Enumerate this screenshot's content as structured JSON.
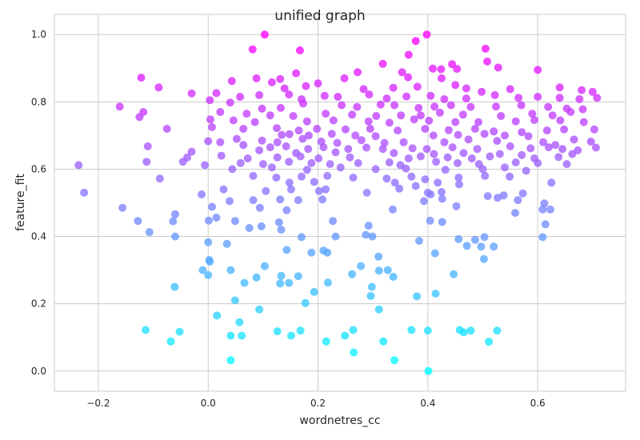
{
  "chart_data": {
    "type": "scatter",
    "title": "unified graph",
    "xlabel": "wordnetres_cc",
    "ylabel": "feature_fit",
    "xlim": [
      -0.28,
      0.76
    ],
    "ylim": [
      -0.06,
      1.06
    ],
    "xticks": [
      -0.2,
      0.0,
      0.2,
      0.4,
      0.6
    ],
    "xtick_labels": [
      "−0.2",
      "0.0",
      "0.2",
      "0.4",
      "0.6"
    ],
    "yticks": [
      0.0,
      0.2,
      0.4,
      0.6,
      0.8,
      1.0
    ],
    "ytick_labels": [
      "0.0",
      "0.2",
      "0.4",
      "0.6",
      "0.8",
      "1.0"
    ],
    "grid": true,
    "color_map": {
      "low": "#00ffff",
      "high": "#ff00ff",
      "encodes": "y"
    },
    "points": [
      [
        0.103,
        1.0
      ],
      [
        0.398,
        1.0
      ],
      [
        0.378,
        0.981
      ],
      [
        0.081,
        0.956
      ],
      [
        0.167,
        0.953
      ],
      [
        0.505,
        0.958
      ],
      [
        0.365,
        0.94
      ],
      [
        0.508,
        0.92
      ],
      [
        0.318,
        0.913
      ],
      [
        0.444,
        0.912
      ],
      [
        0.528,
        0.902
      ],
      [
        0.409,
        0.899
      ],
      [
        0.6,
        0.895
      ],
      [
        0.16,
        0.885
      ],
      [
        0.272,
        0.888
      ],
      [
        0.353,
        0.888
      ],
      [
        0.424,
        0.897
      ],
      [
        0.453,
        0.898
      ],
      [
        -0.122,
        0.872
      ],
      [
        0.088,
        0.87
      ],
      [
        0.131,
        0.868
      ],
      [
        0.248,
        0.87
      ],
      [
        0.364,
        0.873
      ],
      [
        0.425,
        0.87
      ],
      [
        -0.09,
        0.843
      ],
      [
        0.043,
        0.862
      ],
      [
        0.116,
        0.858
      ],
      [
        0.139,
        0.84
      ],
      [
        0.178,
        0.847
      ],
      [
        0.2,
        0.855
      ],
      [
        0.283,
        0.838
      ],
      [
        0.337,
        0.842
      ],
      [
        0.381,
        0.845
      ],
      [
        0.45,
        0.85
      ],
      [
        0.47,
        0.84
      ],
      [
        0.498,
        0.83
      ],
      [
        0.55,
        0.838
      ],
      [
        0.64,
        0.843
      ],
      [
        0.68,
        0.835
      ],
      [
        0.7,
        0.83
      ],
      [
        -0.03,
        0.825
      ],
      [
        0.015,
        0.826
      ],
      [
        0.058,
        0.815
      ],
      [
        0.093,
        0.82
      ],
      [
        0.147,
        0.822
      ],
      [
        0.17,
        0.808
      ],
      [
        0.212,
        0.818
      ],
      [
        0.236,
        0.815
      ],
      [
        0.293,
        0.822
      ],
      [
        0.325,
        0.81
      ],
      [
        0.361,
        0.816
      ],
      [
        0.405,
        0.818
      ],
      [
        0.43,
        0.808
      ],
      [
        0.47,
        0.81
      ],
      [
        0.522,
        0.82
      ],
      [
        0.565,
        0.812
      ],
      [
        0.6,
        0.815
      ],
      [
        0.64,
        0.812
      ],
      [
        0.676,
        0.808
      ],
      [
        0.708,
        0.812
      ],
      [
        -0.161,
        0.786
      ],
      [
        0.003,
        0.805
      ],
      [
        0.04,
        0.798
      ],
      [
        0.098,
        0.78
      ],
      [
        0.132,
        0.782
      ],
      [
        0.173,
        0.795
      ],
      [
        0.243,
        0.79
      ],
      [
        0.271,
        0.785
      ],
      [
        0.314,
        0.792
      ],
      [
        0.339,
        0.79
      ],
      [
        0.383,
        0.782
      ],
      [
        0.412,
        0.786
      ],
      [
        0.442,
        0.79
      ],
      [
        0.478,
        0.785
      ],
      [
        0.524,
        0.786
      ],
      [
        0.57,
        0.79
      ],
      [
        0.619,
        0.785
      ],
      [
        0.653,
        0.78
      ],
      [
        0.682,
        0.778
      ],
      [
        -0.118,
        0.77
      ],
      [
        0.022,
        0.77
      ],
      [
        0.07,
        0.765
      ],
      [
        0.113,
        0.76
      ],
      [
        0.155,
        0.758
      ],
      [
        0.214,
        0.765
      ],
      [
        0.262,
        0.762
      ],
      [
        0.306,
        0.758
      ],
      [
        0.351,
        0.76
      ],
      [
        0.387,
        0.76
      ],
      [
        0.422,
        0.768
      ],
      [
        0.464,
        0.762
      ],
      [
        0.533,
        0.758
      ],
      [
        0.59,
        0.765
      ],
      [
        0.627,
        0.76
      ],
      [
        0.66,
        0.77
      ],
      [
        -0.125,
        0.755
      ],
      [
        0.004,
        0.748
      ],
      [
        0.046,
        0.745
      ],
      [
        0.085,
        0.74
      ],
      [
        0.18,
        0.742
      ],
      [
        0.228,
        0.745
      ],
      [
        0.292,
        0.742
      ],
      [
        0.33,
        0.738
      ],
      [
        0.375,
        0.748
      ],
      [
        0.402,
        0.744
      ],
      [
        0.45,
        0.74
      ],
      [
        0.492,
        0.74
      ],
      [
        0.56,
        0.742
      ],
      [
        0.594,
        0.746
      ],
      [
        0.641,
        0.745
      ],
      [
        0.684,
        0.74
      ],
      [
        -0.075,
        0.72
      ],
      [
        0.007,
        0.725
      ],
      [
        0.064,
        0.72
      ],
      [
        0.125,
        0.722
      ],
      [
        0.165,
        0.715
      ],
      [
        0.198,
        0.72
      ],
      [
        0.25,
        0.718
      ],
      [
        0.295,
        0.72
      ],
      [
        0.345,
        0.715
      ],
      [
        0.395,
        0.72
      ],
      [
        0.438,
        0.716
      ],
      [
        0.486,
        0.72
      ],
      [
        0.52,
        0.712
      ],
      [
        0.571,
        0.71
      ],
      [
        0.617,
        0.715
      ],
      [
        0.648,
        0.718
      ],
      [
        0.703,
        0.718
      ],
      [
        0.134,
        0.702
      ],
      [
        0.148,
        0.704
      ],
      [
        0.183,
        0.7
      ],
      [
        0.225,
        0.705
      ],
      [
        0.268,
        0.7
      ],
      [
        0.305,
        0.698
      ],
      [
        0.41,
        0.7
      ],
      [
        0.455,
        0.702
      ],
      [
        0.503,
        0.705
      ],
      [
        0.54,
        0.7
      ],
      [
        0.583,
        0.698
      ],
      [
        0.0,
        0.683
      ],
      [
        0.022,
        0.68
      ],
      [
        0.052,
        0.69
      ],
      [
        0.098,
        0.685
      ],
      [
        0.126,
        0.68
      ],
      [
        0.172,
        0.69
      ],
      [
        0.206,
        0.682
      ],
      [
        0.235,
        0.678
      ],
      [
        0.279,
        0.686
      ],
      [
        0.321,
        0.678
      ],
      [
        0.356,
        0.68
      ],
      [
        0.43,
        0.68
      ],
      [
        0.474,
        0.688
      ],
      [
        0.526,
        0.684
      ],
      [
        0.61,
        0.68
      ],
      [
        0.632,
        0.672
      ],
      [
        0.666,
        0.688
      ],
      [
        0.697,
        0.682
      ],
      [
        -0.11,
        0.668
      ],
      [
        0.064,
        0.672
      ],
      [
        0.113,
        0.665
      ],
      [
        0.142,
        0.668
      ],
      [
        0.182,
        0.66
      ],
      [
        0.21,
        0.665
      ],
      [
        0.255,
        0.66
      ],
      [
        0.288,
        0.664
      ],
      [
        0.318,
        0.66
      ],
      [
        0.372,
        0.662
      ],
      [
        0.398,
        0.66
      ],
      [
        0.445,
        0.665
      ],
      [
        0.49,
        0.66
      ],
      [
        0.55,
        0.668
      ],
      [
        0.587,
        0.662
      ],
      [
        0.62,
        0.665
      ],
      [
        0.645,
        0.66
      ],
      [
        0.673,
        0.656
      ],
      [
        0.706,
        0.664
      ],
      [
        -0.03,
        0.652
      ],
      [
        0.093,
        0.656
      ],
      [
        0.16,
        0.648
      ],
      [
        0.232,
        0.65
      ],
      [
        0.338,
        0.648
      ],
      [
        0.411,
        0.645
      ],
      [
        0.465,
        0.648
      ],
      [
        0.531,
        0.645
      ],
      [
        0.571,
        0.642
      ],
      [
        0.663,
        0.645
      ],
      [
        -0.038,
        0.635
      ],
      [
        0.024,
        0.64
      ],
      [
        0.072,
        0.632
      ],
      [
        0.126,
        0.635
      ],
      [
        0.168,
        0.638
      ],
      [
        0.201,
        0.632
      ],
      [
        0.258,
        0.635
      ],
      [
        0.365,
        0.632
      ],
      [
        0.387,
        0.638
      ],
      [
        0.436,
        0.635
      ],
      [
        0.48,
        0.632
      ],
      [
        0.513,
        0.638
      ],
      [
        0.594,
        0.632
      ],
      [
        0.638,
        0.636
      ],
      [
        -0.112,
        0.622
      ],
      [
        -0.046,
        0.622
      ],
      [
        0.059,
        0.618
      ],
      [
        0.1,
        0.615
      ],
      [
        0.147,
        0.622
      ],
      [
        0.188,
        0.618
      ],
      [
        0.222,
        0.615
      ],
      [
        0.273,
        0.618
      ],
      [
        0.33,
        0.62
      ],
      [
        0.35,
        0.612
      ],
      [
        0.415,
        0.622
      ],
      [
        0.454,
        0.618
      ],
      [
        0.493,
        0.615
      ],
      [
        0.56,
        0.62
      ],
      [
        0.6,
        0.618
      ],
      [
        0.653,
        0.615
      ],
      [
        -0.236,
        0.612
      ],
      [
        -0.006,
        0.612
      ],
      [
        0.044,
        0.6
      ],
      [
        0.116,
        0.605
      ],
      [
        0.18,
        0.598
      ],
      [
        0.241,
        0.605
      ],
      [
        0.305,
        0.6
      ],
      [
        0.36,
        0.602
      ],
      [
        0.432,
        0.598
      ],
      [
        0.5,
        0.6
      ],
      [
        0.54,
        0.605
      ],
      [
        0.579,
        0.595
      ],
      [
        -0.088,
        0.572
      ],
      [
        0.082,
        0.58
      ],
      [
        0.124,
        0.575
      ],
      [
        0.17,
        0.578
      ],
      [
        0.217,
        0.58
      ],
      [
        0.264,
        0.575
      ],
      [
        0.325,
        0.572
      ],
      [
        0.37,
        0.578
      ],
      [
        0.395,
        0.57
      ],
      [
        0.456,
        0.575
      ],
      [
        0.504,
        0.58
      ],
      [
        0.549,
        0.578
      ],
      [
        0.148,
        0.56
      ],
      [
        0.193,
        0.562
      ],
      [
        0.34,
        0.56
      ],
      [
        0.378,
        0.55
      ],
      [
        0.418,
        0.56
      ],
      [
        0.457,
        0.555
      ],
      [
        0.625,
        0.56
      ],
      [
        -0.226,
        0.53
      ],
      [
        -0.012,
        0.525
      ],
      [
        0.028,
        0.54
      ],
      [
        0.105,
        0.535
      ],
      [
        0.151,
        0.54
      ],
      [
        0.202,
        0.535
      ],
      [
        0.214,
        0.54
      ],
      [
        0.289,
        0.53
      ],
      [
        0.348,
        0.542
      ],
      [
        0.4,
        0.53
      ],
      [
        0.405,
        0.525
      ],
      [
        0.425,
        0.532
      ],
      [
        0.509,
        0.52
      ],
      [
        0.527,
        0.515
      ],
      [
        0.538,
        0.522
      ],
      [
        0.573,
        0.528
      ],
      [
        0.039,
        0.505
      ],
      [
        0.082,
        0.508
      ],
      [
        0.131,
        0.51
      ],
      [
        0.164,
        0.508
      ],
      [
        0.208,
        0.51
      ],
      [
        0.393,
        0.505
      ],
      [
        0.426,
        0.512
      ],
      [
        0.564,
        0.508
      ],
      [
        0.612,
        0.498
      ],
      [
        0.007,
        0.488
      ],
      [
        0.094,
        0.485
      ],
      [
        0.143,
        0.478
      ],
      [
        0.336,
        0.48
      ],
      [
        0.452,
        0.49
      ],
      [
        0.559,
        0.47
      ],
      [
        0.609,
        0.48
      ],
      [
        0.623,
        0.48
      ],
      [
        -0.156,
        0.485
      ],
      [
        0.015,
        0.456
      ],
      [
        0.049,
        0.446
      ],
      [
        0.129,
        0.442
      ],
      [
        0.227,
        0.446
      ],
      [
        0.404,
        0.447
      ],
      [
        0.426,
        0.443
      ],
      [
        0.614,
        0.436
      ],
      [
        -0.128,
        0.446
      ],
      [
        -0.06,
        0.466
      ],
      [
        -0.064,
        0.445
      ],
      [
        0.001,
        0.447
      ],
      [
        0.292,
        0.432
      ],
      [
        0.075,
        0.425
      ],
      [
        0.133,
        0.42
      ],
      [
        0.097,
        0.43
      ],
      [
        0.287,
        0.405
      ],
      [
        0.299,
        0.4
      ],
      [
        0.232,
        0.4
      ],
      [
        0.17,
        0.398
      ],
      [
        0.503,
        0.398
      ],
      [
        -0.107,
        0.413
      ],
      [
        0.456,
        0.392
      ],
      [
        0.486,
        0.39
      ],
      [
        0.384,
        0.387
      ],
      [
        0.609,
        0.398
      ],
      [
        -0.06,
        0.4
      ],
      [
        0.0,
        0.383
      ],
      [
        0.034,
        0.378
      ],
      [
        0.497,
        0.37
      ],
      [
        0.52,
        0.37
      ],
      [
        0.471,
        0.372
      ],
      [
        0.413,
        0.35
      ],
      [
        0.143,
        0.36
      ],
      [
        0.188,
        0.352
      ],
      [
        0.21,
        0.358
      ],
      [
        0.217,
        0.352
      ],
      [
        0.31,
        0.34
      ],
      [
        0.502,
        0.333
      ],
      [
        0.003,
        0.325
      ],
      [
        0.002,
        0.33
      ],
      [
        0.103,
        0.312
      ],
      [
        0.278,
        0.312
      ],
      [
        0.327,
        0.3
      ],
      [
        0.311,
        0.298
      ],
      [
        -0.01,
        0.3
      ],
      [
        0.041,
        0.3
      ],
      [
        0.133,
        0.283
      ],
      [
        0.262,
        0.288
      ],
      [
        0.337,
        0.28
      ],
      [
        0.088,
        0.278
      ],
      [
        0.164,
        0.282
      ],
      [
        0.0,
        0.285
      ],
      [
        0.147,
        0.262
      ],
      [
        0.131,
        0.26
      ],
      [
        0.218,
        0.263
      ],
      [
        0.066,
        0.262
      ],
      [
        0.298,
        0.25
      ],
      [
        0.447,
        0.288
      ],
      [
        -0.061,
        0.25
      ],
      [
        0.193,
        0.235
      ],
      [
        0.414,
        0.23
      ],
      [
        0.296,
        0.223
      ],
      [
        0.38,
        0.222
      ],
      [
        0.049,
        0.21
      ],
      [
        0.177,
        0.202
      ],
      [
        0.093,
        0.183
      ],
      [
        0.311,
        0.183
      ],
      [
        0.016,
        0.165
      ],
      [
        0.057,
        0.145
      ],
      [
        -0.114,
        0.122
      ],
      [
        -0.052,
        0.117
      ],
      [
        0.126,
        0.118
      ],
      [
        0.168,
        0.12
      ],
      [
        0.264,
        0.122
      ],
      [
        0.37,
        0.122
      ],
      [
        0.4,
        0.12
      ],
      [
        0.458,
        0.122
      ],
      [
        0.465,
        0.115
      ],
      [
        0.478,
        0.12
      ],
      [
        0.526,
        0.12
      ],
      [
        0.041,
        0.105
      ],
      [
        0.061,
        0.105
      ],
      [
        0.151,
        0.105
      ],
      [
        0.249,
        0.105
      ],
      [
        -0.068,
        0.088
      ],
      [
        0.215,
        0.088
      ],
      [
        0.319,
        0.088
      ],
      [
        0.511,
        0.087
      ],
      [
        0.265,
        0.055
      ],
      [
        0.041,
        0.032
      ],
      [
        0.339,
        0.032
      ],
      [
        0.401,
        0.0
      ]
    ]
  }
}
